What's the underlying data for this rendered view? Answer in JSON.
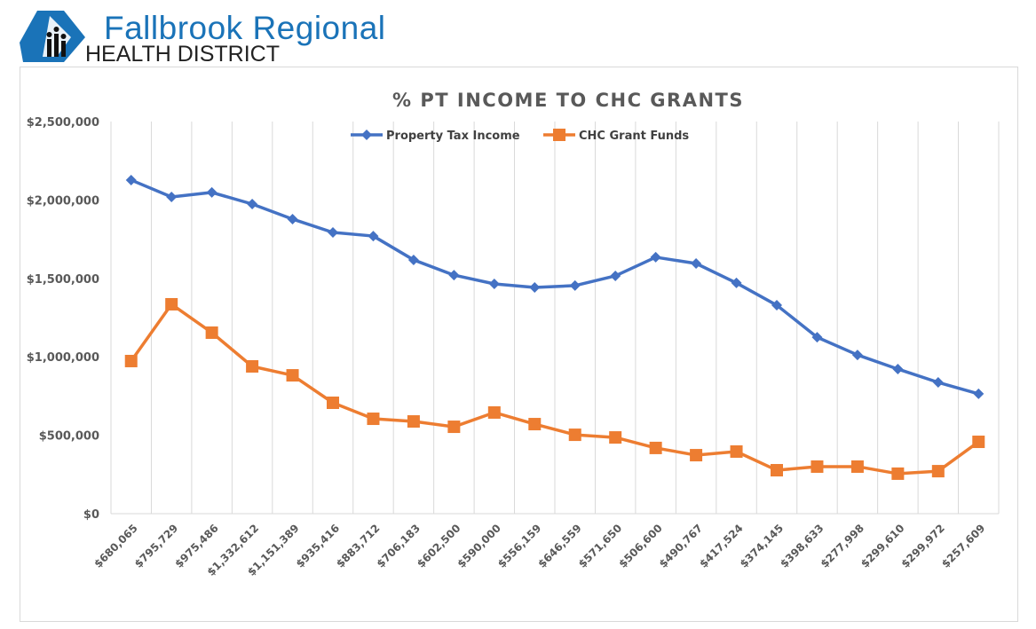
{
  "logo": {
    "line1": "Fallbrook Regional",
    "line2": "HEALTH DISTRICT"
  },
  "chart_data": {
    "type": "line",
    "title": "% PT INCOME TO CHC GRANTS",
    "xlabel": "",
    "ylabel": "",
    "ylim": [
      0,
      2500000
    ],
    "yticks": [
      "$0",
      "$500,000",
      "$1,000,000",
      "$1,500,000",
      "$2,000,000",
      "$2,500,000"
    ],
    "ytick_values": [
      0,
      500000,
      1000000,
      1500000,
      2000000,
      2500000
    ],
    "categories": [
      "$680,065",
      "$795,729",
      "$975,486",
      "$1,332,612",
      "$1,151,389",
      "$935,416",
      "$883,712",
      "$706,183",
      "$602,500",
      "$590,000",
      "$556,159",
      "$646,559",
      "$571,650",
      "$506,600",
      "$490,767",
      "$417,524",
      "$374,145",
      "$398,633",
      "$277,998",
      "$299,610",
      "$299,972",
      "$257,609"
    ],
    "grid": "vertical",
    "legend": "top-center",
    "series": [
      {
        "name": "Property Tax Income",
        "color": "#4472c4",
        "marker": "diamond",
        "values": [
          2127000,
          2019000,
          2048000,
          1974000,
          1878000,
          1793000,
          1770000,
          1618000,
          1521000,
          1465000,
          1442000,
          1454000,
          1516000,
          1635000,
          1595000,
          1471000,
          1329000,
          1125000,
          1012000,
          922000,
          837000,
          764000
        ]
      },
      {
        "name": "CHC Grant Funds",
        "color": "#ed7d31",
        "marker": "square",
        "values": [
          973000,
          1335000,
          1154000,
          939000,
          882000,
          707000,
          605000,
          588000,
          554000,
          645000,
          571000,
          503000,
          486000,
          419000,
          373000,
          396000,
          277000,
          300000,
          300000,
          255000,
          271000,
          458000
        ]
      }
    ]
  }
}
